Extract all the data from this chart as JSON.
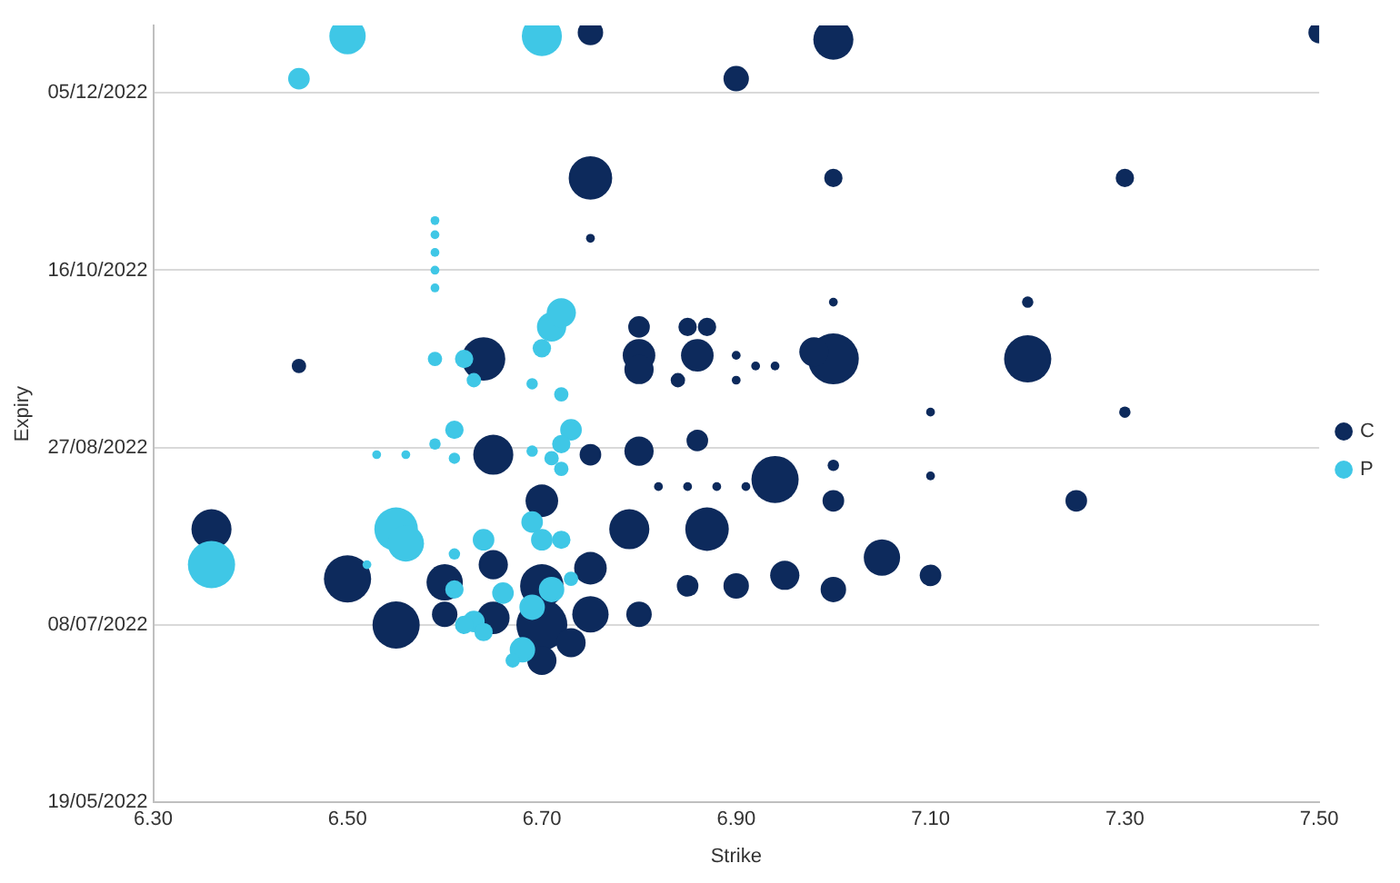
{
  "chart_data": {
    "type": "bubble",
    "orientation": "horizontal",
    "xlabel": "Strike",
    "ylabel": "Expiry",
    "xlim": [
      6.3,
      7.5
    ],
    "xticks": [
      {
        "value": 6.3,
        "label": "6.30"
      },
      {
        "value": 6.5,
        "label": "6.50"
      },
      {
        "value": 6.7,
        "label": "6.70"
      },
      {
        "value": 6.9,
        "label": "6.90"
      },
      {
        "value": 7.1,
        "label": "7.10"
      },
      {
        "value": 7.3,
        "label": "7.30"
      },
      {
        "value": 7.5,
        "label": "7.50"
      }
    ],
    "ylim": [
      "2022-05-19",
      "2022-12-24"
    ],
    "yticks": [
      {
        "value": "2022-05-19",
        "label": "19/05/2022"
      },
      {
        "value": "2022-07-08",
        "label": "08/07/2022"
      },
      {
        "value": "2022-08-27",
        "label": "27/08/2022"
      },
      {
        "value": "2022-10-16",
        "label": "16/10/2022"
      },
      {
        "value": "2022-12-05",
        "label": "05/12/2022"
      }
    ],
    "grid": "y",
    "legend": "right",
    "series": [
      {
        "name": "C",
        "color": "#0d2a5c",
        "values": [
          7.5,
          7.0,
          6.75,
          6.9,
          6.75,
          7.0,
          7.3,
          6.75,
          7.0,
          7.2,
          6.45,
          6.64,
          6.8,
          6.85,
          6.87,
          6.8,
          6.8,
          6.86,
          6.84,
          7.0,
          6.98,
          7.2,
          7.1,
          7.3,
          6.65,
          6.75,
          6.8,
          6.86,
          7.0,
          6.94,
          6.36,
          6.7,
          6.79,
          6.87,
          7.0,
          7.25,
          6.5,
          6.55,
          6.9,
          6.95,
          7.0,
          7.05,
          7.1,
          6.85,
          6.8,
          6.6,
          6.65,
          6.7,
          6.7,
          6.75,
          6.75,
          6.7,
          6.73,
          6.65,
          6.6,
          6.82,
          6.85,
          6.88,
          6.91,
          7.1,
          6.9,
          6.92,
          6.94,
          6.9
        ],
        "x": [
          "2022-12-22",
          "2022-12-20",
          "2022-12-22",
          "2022-12-09",
          "2022-11-11",
          "2022-11-11",
          "2022-11-11",
          "2022-10-25",
          "2022-10-07",
          "2022-10-07",
          "2022-09-19",
          "2022-09-21",
          "2022-09-30",
          "2022-09-30",
          "2022-09-30",
          "2022-09-22",
          "2022-09-18",
          "2022-09-22",
          "2022-09-15",
          "2022-09-21",
          "2022-09-23",
          "2022-09-21",
          "2022-09-06",
          "2022-09-06",
          "2022-08-25",
          "2022-08-25",
          "2022-08-26",
          "2022-08-29",
          "2022-08-22",
          "2022-08-18",
          "2022-08-04",
          "2022-08-12",
          "2022-08-04",
          "2022-08-04",
          "2022-08-12",
          "2022-08-12",
          "2022-07-21",
          "2022-07-08",
          "2022-07-19",
          "2022-07-22",
          "2022-07-18",
          "2022-07-27",
          "2022-07-22",
          "2022-07-19",
          "2022-07-11",
          "2022-07-20",
          "2022-07-25",
          "2022-07-19",
          "2022-07-08",
          "2022-07-24",
          "2022-07-11",
          "2022-06-28",
          "2022-07-03",
          "2022-07-10",
          "2022-07-11",
          "2022-08-16",
          "2022-08-16",
          "2022-08-16",
          "2022-08-16",
          "2022-08-19",
          "2022-09-22",
          "2022-09-19",
          "2022-09-19",
          "2022-09-15"
        ],
        "sizes": [
          0.18,
          0.62,
          0.25,
          0.25,
          0.73,
          0.13,
          0.13,
          0.03,
          0.03,
          0.05,
          0.08,
          0.73,
          0.18,
          0.13,
          0.13,
          0.41,
          0.33,
          0.41,
          0.08,
          1,
          0.33,
          0.86,
          0.03,
          0.05,
          0.62,
          0.18,
          0.33,
          0.18,
          0.05,
          0.86,
          0.62,
          0.41,
          0.62,
          0.73,
          0.18,
          0.18,
          0.86,
          0.86,
          0.25,
          0.33,
          0.25,
          0.51,
          0.18,
          0.18,
          0.25,
          0.51,
          0.33,
          0.73,
          1,
          0.41,
          0.51,
          0.33,
          0.33,
          0.41,
          0.25,
          0.03,
          0.03,
          0.03,
          0.03,
          0.03,
          0.03,
          0.03,
          0.03,
          0.03
        ]
      },
      {
        "name": "P",
        "color": "#3fc7e6",
        "values": [
          6.5,
          6.45,
          6.7,
          6.59,
          6.59,
          6.59,
          6.59,
          6.59,
          6.71,
          6.72,
          6.7,
          6.62,
          6.59,
          6.63,
          6.69,
          6.72,
          6.61,
          6.59,
          6.53,
          6.56,
          6.61,
          6.73,
          6.72,
          6.71,
          6.69,
          6.72,
          6.36,
          6.55,
          6.56,
          6.52,
          6.61,
          6.64,
          6.69,
          6.7,
          6.66,
          6.69,
          6.71,
          6.63,
          6.62,
          6.68,
          6.64,
          6.67,
          6.72,
          6.73,
          6.61
        ],
        "x": [
          "2022-12-21",
          "2022-12-09",
          "2022-12-21",
          "2022-10-30",
          "2022-10-26",
          "2022-10-21",
          "2022-10-16",
          "2022-10-11",
          "2022-09-30",
          "2022-10-04",
          "2022-09-24",
          "2022-09-21",
          "2022-09-21",
          "2022-09-15",
          "2022-09-14",
          "2022-09-11",
          "2022-09-01",
          "2022-08-28",
          "2022-08-25",
          "2022-08-25",
          "2022-08-24",
          "2022-09-01",
          "2022-08-28",
          "2022-08-24",
          "2022-08-26",
          "2022-08-21",
          "2022-07-25",
          "2022-08-04",
          "2022-07-31",
          "2022-07-25",
          "2022-07-18",
          "2022-08-01",
          "2022-08-06",
          "2022-08-01",
          "2022-07-17",
          "2022-07-13",
          "2022-07-18",
          "2022-07-09",
          "2022-07-08",
          "2022-07-01",
          "2022-07-06",
          "2022-06-28",
          "2022-08-01",
          "2022-07-21",
          "2022-07-28"
        ],
        "sizes": [
          0.51,
          0.18,
          0.62,
          0.03,
          0.03,
          0.03,
          0.03,
          0.03,
          0.33,
          0.33,
          0.13,
          0.13,
          0.08,
          0.08,
          0.05,
          0.08,
          0.13,
          0.05,
          0.03,
          0.03,
          0.05,
          0.18,
          0.13,
          0.08,
          0.05,
          0.08,
          0.86,
          0.73,
          0.51,
          0.03,
          0.13,
          0.18,
          0.18,
          0.18,
          0.18,
          0.25,
          0.25,
          0.18,
          0.13,
          0.25,
          0.13,
          0.08,
          0.13,
          0.08,
          0.05
        ]
      }
    ]
  }
}
